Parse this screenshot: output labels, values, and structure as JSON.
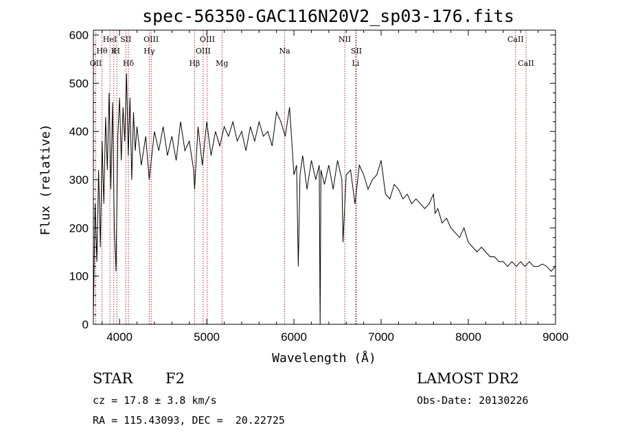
{
  "chart_data": {
    "type": "line",
    "title": "spec-56350-GAC116N20V2_sp03-176.fits",
    "xlabel": "Wavelength (Å)",
    "ylabel": "Flux (relative)",
    "xlim": [
      3700,
      9000
    ],
    "ylim": [
      0,
      610
    ],
    "x_ticks": [
      4000,
      5000,
      6000,
      7000,
      8000,
      9000
    ],
    "y_ticks": [
      0,
      100,
      200,
      300,
      400,
      500,
      600
    ],
    "grid": false,
    "series": [
      {
        "x": [
          3700,
          3720,
          3740,
          3760,
          3780,
          3800,
          3820,
          3840,
          3860,
          3880,
          3900,
          3920,
          3940,
          3960,
          3980,
          4000,
          4020,
          4040,
          4060,
          4080,
          4100,
          4120,
          4140,
          4160,
          4180,
          4200,
          4250,
          4300,
          4340,
          4400,
          4450,
          4500,
          4550,
          4600,
          4650,
          4700,
          4750,
          4800,
          4850,
          4861,
          4900,
          4950,
          5000,
          5050,
          5100,
          5150,
          5200,
          5250,
          5300,
          5350,
          5400,
          5450,
          5500,
          5550,
          5600,
          5650,
          5700,
          5750,
          5800,
          5850,
          5900,
          5950,
          6000,
          6030,
          6050,
          6070,
          6100,
          6150,
          6200,
          6250,
          6290,
          6300,
          6310,
          6350,
          6400,
          6450,
          6500,
          6550,
          6563,
          6600,
          6650,
          6700,
          6750,
          6800,
          6850,
          6900,
          6950,
          7000,
          7050,
          7100,
          7150,
          7200,
          7250,
          7300,
          7350,
          7400,
          7450,
          7500,
          7550,
          7600,
          7620,
          7650,
          7700,
          7750,
          7800,
          7850,
          7900,
          7950,
          8000,
          8050,
          8100,
          8150,
          8200,
          8250,
          8300,
          8350,
          8400,
          8450,
          8500,
          8550,
          8600,
          8650,
          8700,
          8750,
          8800,
          8850,
          8900,
          8950,
          9000
        ],
        "y": [
          20,
          250,
          130,
          320,
          160,
          380,
          250,
          430,
          320,
          480,
          280,
          460,
          200,
          110,
          390,
          470,
          340,
          450,
          380,
          520,
          350,
          470,
          300,
          440,
          360,
          410,
          330,
          390,
          300,
          400,
          360,
          410,
          350,
          390,
          340,
          420,
          360,
          380,
          320,
          280,
          410,
          330,
          420,
          350,
          400,
          370,
          410,
          390,
          420,
          380,
          400,
          360,
          410,
          380,
          420,
          390,
          400,
          370,
          440,
          420,
          390,
          450,
          310,
          330,
          120,
          310,
          350,
          280,
          340,
          300,
          330,
          0,
          320,
          290,
          330,
          280,
          340,
          300,
          170,
          310,
          320,
          250,
          330,
          310,
          280,
          300,
          310,
          340,
          270,
          260,
          290,
          280,
          260,
          270,
          250,
          260,
          250,
          240,
          250,
          270,
          230,
          240,
          210,
          220,
          200,
          190,
          180,
          200,
          170,
          160,
          150,
          160,
          150,
          140,
          140,
          130,
          130,
          120,
          130,
          120,
          130,
          120,
          130,
          120,
          120,
          125,
          120,
          110,
          120
        ]
      }
    ],
    "lines": [
      {
        "label": "OII",
        "x": 3727,
        "row": 3
      },
      {
        "label": "Hθ",
        "x": 3798,
        "row": 2
      },
      {
        "label": "HeI",
        "x": 3889,
        "row": 1
      },
      {
        "label": "K",
        "x": 3934,
        "row": 2
      },
      {
        "label": "H",
        "x": 3969,
        "row": 2
      },
      {
        "label": "SII",
        "x": 4072,
        "row": 1
      },
      {
        "label": "Hδ",
        "x": 4102,
        "row": 3
      },
      {
        "label": "OIII",
        "x": 4363,
        "row": 1
      },
      {
        "label": "Hγ",
        "x": 4341,
        "row": 2
      },
      {
        "label": "Hβ",
        "x": 4861,
        "row": 3
      },
      {
        "label": "OIII",
        "x": 4959,
        "row": 2
      },
      {
        "label": "OIII",
        "x": 5007,
        "row": 1
      },
      {
        "label": "Mg",
        "x": 5175,
        "row": 3
      },
      {
        "label": "Na",
        "x": 5894,
        "row": 2
      },
      {
        "label": "NII",
        "x": 6583,
        "row": 1
      },
      {
        "label": "SII",
        "x": 6716,
        "row": 2
      },
      {
        "label": "Li",
        "x": 6708,
        "row": 3
      },
      {
        "label": "CaII",
        "x": 8542,
        "row": 1
      },
      {
        "label": "CaII",
        "x": 8662,
        "row": 3
      }
    ]
  },
  "info": {
    "object_class": "STAR",
    "subclass": "F2",
    "survey": "LAMOST DR2",
    "cz": "cz = 17.8 ± 3.8 km/s",
    "obs_date": "Obs-Date: 20130226",
    "radec": "RA = 115.43093, DEC =  20.22725"
  },
  "colors": {
    "spectrum": "#000000",
    "line_marker": "#b22222",
    "axes": "#000000"
  }
}
